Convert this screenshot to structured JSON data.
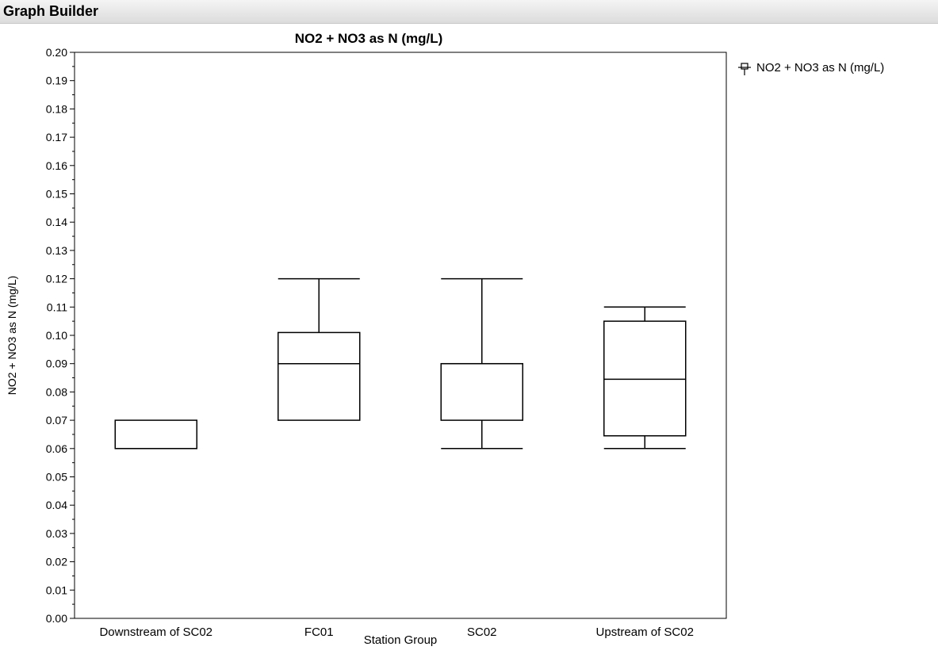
{
  "app": {
    "title": "Graph Builder"
  },
  "legend": {
    "label": "NO2 + NO3 as N (mg/L)",
    "icon": "box-plot-icon"
  },
  "chart_data": {
    "type": "box",
    "title": "NO2 + NO3 as N (mg/L)",
    "xlabel": "Station Group",
    "ylabel": "NO2 + NO3 as N (mg/L)",
    "ylim": [
      0,
      0.2
    ],
    "yticks": [
      "0.00",
      "0.01",
      "0.02",
      "0.03",
      "0.04",
      "0.05",
      "0.06",
      "0.07",
      "0.08",
      "0.09",
      "0.10",
      "0.11",
      "0.12",
      "0.13",
      "0.14",
      "0.15",
      "0.16",
      "0.17",
      "0.18",
      "0.19",
      "0.20"
    ],
    "yminor_per_major": 2,
    "grid": false,
    "legend_position": "top-right",
    "categories": [
      "Downstream of SC02",
      "FC01",
      "SC02",
      "Upstream of SC02"
    ],
    "series": [
      {
        "name": "NO2 + NO3 as N (mg/L)",
        "boxes": [
          {
            "whisker_low": 0.06,
            "q1": 0.06,
            "median": 0.06,
            "q3": 0.07,
            "whisker_high": 0.07
          },
          {
            "whisker_low": 0.07,
            "q1": 0.07,
            "median": 0.09,
            "q3": 0.101,
            "whisker_high": 0.12
          },
          {
            "whisker_low": 0.06,
            "q1": 0.07,
            "median": 0.09,
            "q3": 0.09,
            "whisker_high": 0.12
          },
          {
            "whisker_low": 0.06,
            "q1": 0.0645,
            "median": 0.0845,
            "q3": 0.105,
            "whisker_high": 0.11
          }
        ]
      }
    ]
  }
}
